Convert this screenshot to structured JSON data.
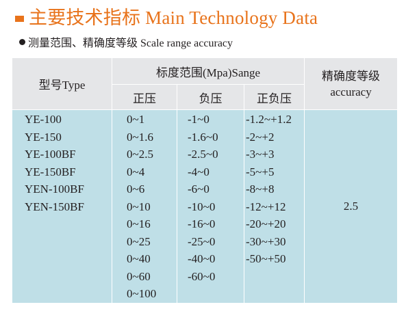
{
  "header": {
    "title": "主要技术指标 Main Technology Data",
    "accent_color": "#e8731b"
  },
  "section": {
    "subtitle": "测量范围、精确度等级  Scale range accuracy"
  },
  "table": {
    "headers": {
      "model": "型号Type",
      "range": "标度范围(Mpa)Sange",
      "positive": "正压",
      "negative": "负压",
      "pos_neg": "正负压",
      "accuracy_line1": "精确度等级",
      "accuracy_line2": "accuracy"
    },
    "models": [
      "YE-100",
      "YE-150",
      "YE-100BF",
      "YE-150BF",
      "YEN-100BF",
      "YEN-150BF"
    ],
    "positive": [
      "0~1",
      "0~1.6",
      "0~2.5",
      "0~4",
      "0~6",
      "0~10",
      "0~16",
      "0~25",
      "0~40",
      "0~60",
      "0~100"
    ],
    "negative": [
      "-1~0",
      "-1.6~0",
      "-2.5~0",
      "-4~0",
      "-6~0",
      "-10~0",
      "-16~0",
      "-25~0",
      "-40~0",
      "-60~0"
    ],
    "pos_neg": [
      "-1.2~+1.2",
      "-2~+2",
      "-3~+3",
      "-5~+5",
      "-8~+8",
      "-12~+12",
      "-20~+20",
      "-30~+30",
      "-50~+50"
    ],
    "accuracy": "2.5",
    "header_bg": "#e5e6e8",
    "body_bg": "#bfdfe7"
  }
}
